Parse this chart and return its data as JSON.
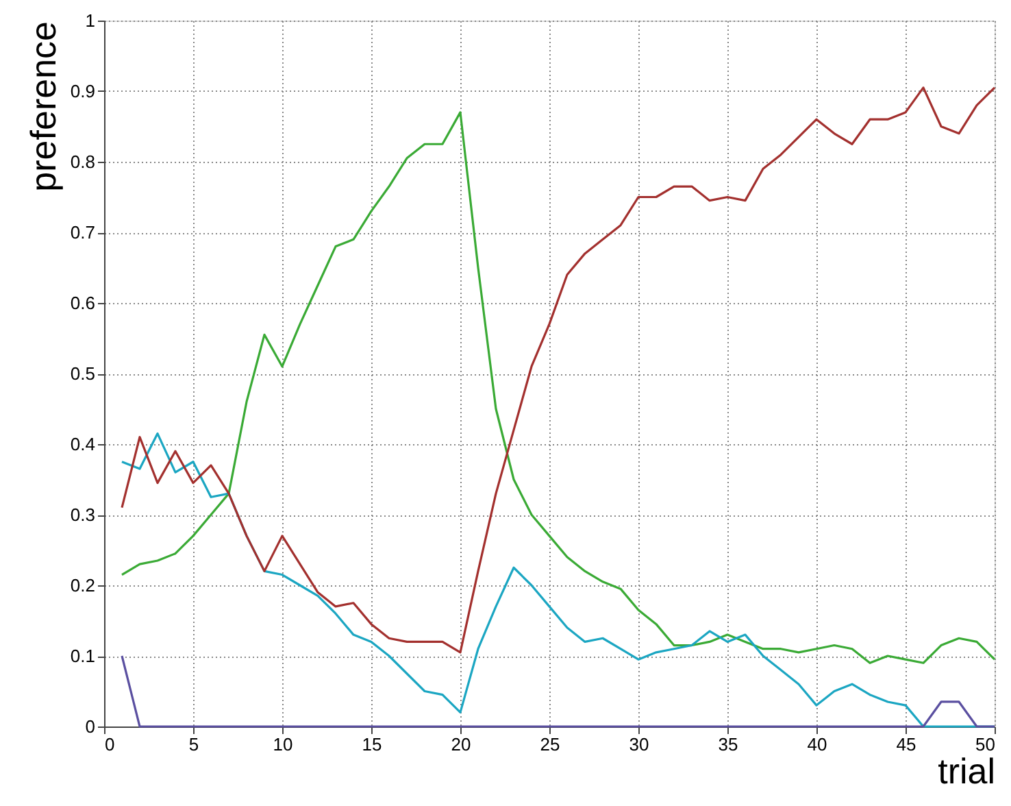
{
  "chart_data": {
    "type": "line",
    "xlabel": "trial",
    "ylabel": "preference",
    "x": [
      1,
      2,
      3,
      4,
      5,
      6,
      7,
      8,
      9,
      10,
      11,
      12,
      13,
      14,
      15,
      16,
      17,
      18,
      19,
      20,
      21,
      22,
      23,
      24,
      25,
      26,
      27,
      28,
      29,
      30,
      31,
      32,
      33,
      34,
      35,
      36,
      37,
      38,
      39,
      40,
      41,
      42,
      43,
      44,
      45,
      46,
      47,
      48,
      49,
      50
    ],
    "series": [
      {
        "color": "#3aaa35",
        "values": [
          0.215,
          0.23,
          0.235,
          0.245,
          0.27,
          0.3,
          0.33,
          0.46,
          0.555,
          0.51,
          0.57,
          0.625,
          0.68,
          0.69,
          0.73,
          0.765,
          0.805,
          0.825,
          0.825,
          0.87,
          0.65,
          0.45,
          0.35,
          0.3,
          0.27,
          0.24,
          0.22,
          0.205,
          0.195,
          0.165,
          0.145,
          0.115,
          0.115,
          0.12,
          0.13,
          0.12,
          0.11,
          0.11,
          0.105,
          0.11,
          0.115,
          0.11,
          0.09,
          0.1,
          0.095,
          0.09,
          0.115,
          0.125,
          0.12,
          0.095
        ]
      },
      {
        "color": "#1ba6c2",
        "values": [
          0.375,
          0.365,
          0.415,
          0.36,
          0.375,
          0.325,
          0.33,
          0.27,
          0.22,
          0.215,
          0.2,
          0.185,
          0.16,
          0.13,
          0.12,
          0.1,
          0.075,
          0.05,
          0.045,
          0.02,
          0.11,
          0.17,
          0.225,
          0.2,
          0.17,
          0.14,
          0.12,
          0.125,
          0.11,
          0.095,
          0.105,
          0.11,
          0.115,
          0.135,
          0.12,
          0.13,
          0.1,
          0.08,
          0.06,
          0.03,
          0.05,
          0.06,
          0.045,
          0.035,
          0.03,
          0,
          0,
          0,
          0,
          0
        ]
      },
      {
        "color": "#a3302e",
        "values": [
          0.31,
          0.41,
          0.345,
          0.39,
          0.345,
          0.37,
          0.33,
          0.27,
          0.22,
          0.27,
          0.23,
          0.19,
          0.17,
          0.175,
          0.145,
          0.125,
          0.12,
          0.12,
          0.12,
          0.105,
          0.22,
          0.33,
          0.42,
          0.51,
          0.57,
          0.64,
          0.67,
          0.69,
          0.71,
          0.75,
          0.75,
          0.765,
          0.765,
          0.745,
          0.75,
          0.745,
          0.79,
          0.81,
          0.835,
          0.86,
          0.84,
          0.825,
          0.86,
          0.86,
          0.87,
          0.905,
          0.85,
          0.84,
          0.88,
          0.905
        ]
      },
      {
        "color": "#5a4fa0",
        "values": [
          0.1,
          0,
          0,
          0,
          0,
          0,
          0,
          0,
          0,
          0,
          0,
          0,
          0,
          0,
          0,
          0,
          0,
          0,
          0,
          0,
          0,
          0,
          0,
          0,
          0,
          0,
          0,
          0,
          0,
          0,
          0,
          0,
          0,
          0,
          0,
          0,
          0,
          0,
          0,
          0,
          0,
          0,
          0,
          0,
          0,
          0,
          0.035,
          0.035,
          0,
          0
        ]
      }
    ],
    "xlim": [
      0,
      50
    ],
    "ylim": [
      0,
      1
    ],
    "xticks": [
      0,
      5,
      10,
      15,
      20,
      25,
      30,
      35,
      40,
      45,
      50
    ],
    "yticks": [
      0,
      0.1,
      0.2,
      0.3,
      0.4,
      0.5,
      0.6,
      0.7,
      0.8,
      0.9,
      1
    ],
    "grid": true,
    "line_style": "solid"
  }
}
